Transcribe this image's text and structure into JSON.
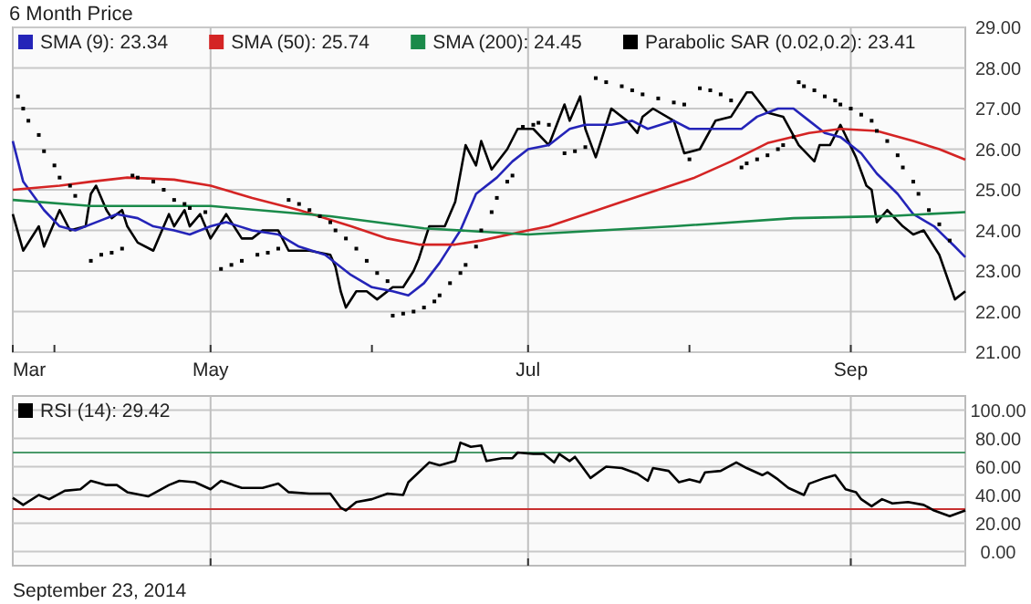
{
  "chart_data": [
    {
      "type": "line",
      "title": "6 Month Price",
      "legend": "top left",
      "grid": true,
      "xlim": [
        "2014-03-24",
        "2014-09-23"
      ],
      "xticks": [
        {
          "value": "2014-03-24",
          "label": "Mar"
        },
        {
          "value": "2014-04-01",
          "label": null
        },
        {
          "value": "2014-05-01",
          "label": "May"
        },
        {
          "value": "2014-06-01",
          "label": null
        },
        {
          "value": "2014-07-01",
          "label": "Jul"
        },
        {
          "value": "2014-08-01",
          "label": null
        },
        {
          "value": "2014-09-01",
          "label": "Sep"
        }
      ],
      "ylim": [
        21,
        29
      ],
      "yticks": [
        {
          "value": 21,
          "label": "21.00"
        },
        {
          "value": 22,
          "label": "22.00"
        },
        {
          "value": 23,
          "label": "23.00"
        },
        {
          "value": 24,
          "label": "24.00"
        },
        {
          "value": 25,
          "label": "25.00"
        },
        {
          "value": 26,
          "label": "26.00"
        },
        {
          "value": 27,
          "label": "27.00"
        },
        {
          "value": 28,
          "label": "28.00"
        },
        {
          "value": 29,
          "label": "29.00"
        }
      ],
      "series": [
        {
          "color": "#000000",
          "x": [
            "2014-03-24",
            "2014-03-26",
            "2014-03-29",
            "2014-03-30",
            "2014-04-02",
            "2014-04-04",
            "2014-04-07",
            "2014-04-08",
            "2014-04-09",
            "2014-04-11",
            "2014-04-12",
            "2014-04-14",
            "2014-04-15",
            "2014-04-17",
            "2014-04-20",
            "2014-04-23",
            "2014-04-24",
            "2014-04-26",
            "2014-04-27",
            "2014-04-29",
            "2014-05-01",
            "2014-05-04",
            "2014-05-07",
            "2014-05-09",
            "2014-05-11",
            "2014-05-14",
            "2014-05-16",
            "2014-05-20",
            "2014-05-24",
            "2014-05-25",
            "2014-05-26",
            "2014-05-27",
            "2014-05-29",
            "2014-05-31",
            "2014-06-02",
            "2014-06-05",
            "2014-06-07",
            "2014-06-09",
            "2014-06-10",
            "2014-06-12",
            "2014-06-15",
            "2014-06-17",
            "2014-06-19",
            "2014-06-21",
            "2014-06-22",
            "2014-06-24",
            "2014-06-27",
            "2014-06-29",
            "2014-07-02",
            "2014-07-05",
            "2014-07-08",
            "2014-07-09",
            "2014-07-11",
            "2014-07-12",
            "2014-07-14",
            "2014-07-17",
            "2014-07-20",
            "2014-07-22",
            "2014-07-23",
            "2014-07-25",
            "2014-07-29",
            "2014-07-31",
            "2014-08-03",
            "2014-08-06",
            "2014-08-09",
            "2014-08-12",
            "2014-08-13",
            "2014-08-16",
            "2014-08-19",
            "2014-08-22",
            "2014-08-25",
            "2014-08-26",
            "2014-08-28",
            "2014-08-30",
            "2014-09-02",
            "2014-09-04",
            "2014-09-05",
            "2014-09-06",
            "2014-09-08",
            "2014-09-11",
            "2014-09-13",
            "2014-09-15",
            "2014-09-18",
            "2014-09-21",
            "2014-09-23"
          ],
          "values": [
            24.4,
            23.5,
            24.1,
            23.6,
            24.5,
            24.0,
            24.1,
            24.9,
            25.1,
            24.5,
            24.3,
            24.5,
            24.1,
            23.7,
            23.5,
            24.4,
            24.1,
            24.5,
            24.1,
            24.4,
            23.8,
            24.4,
            23.8,
            23.8,
            24.0,
            24.0,
            23.5,
            23.5,
            23.4,
            23.1,
            22.5,
            22.1,
            22.5,
            22.5,
            22.3,
            22.6,
            22.6,
            23.0,
            23.3,
            24.1,
            24.1,
            24.7,
            26.1,
            25.6,
            26.2,
            25.5,
            26.0,
            26.5,
            26.5,
            26.1,
            27.1,
            26.7,
            27.3,
            26.5,
            25.8,
            27.0,
            26.7,
            26.4,
            26.8,
            27.0,
            26.7,
            25.9,
            26.0,
            26.7,
            26.8,
            27.4,
            27.4,
            26.9,
            26.8,
            26.1,
            25.7,
            26.1,
            26.1,
            26.6,
            25.8,
            25.1,
            25.0,
            24.2,
            24.5,
            24.1,
            23.9,
            24.0,
            23.4,
            22.3,
            22.5
          ]
        },
        {
          "name": "SMA (9): 23.34",
          "color": "#2424b8",
          "x": [
            "2014-03-24",
            "2014-03-26",
            "2014-03-30",
            "2014-04-02",
            "2014-04-05",
            "2014-04-09",
            "2014-04-13",
            "2014-04-17",
            "2014-04-20",
            "2014-04-24",
            "2014-04-27",
            "2014-05-01",
            "2014-05-04",
            "2014-05-09",
            "2014-05-14",
            "2014-05-18",
            "2014-05-23",
            "2014-05-28",
            "2014-06-01",
            "2014-06-05",
            "2014-06-08",
            "2014-06-11",
            "2014-06-14",
            "2014-06-18",
            "2014-06-21",
            "2014-06-25",
            "2014-06-28",
            "2014-07-01",
            "2014-07-05",
            "2014-07-09",
            "2014-07-12",
            "2014-07-17",
            "2014-07-21",
            "2014-07-24",
            "2014-07-29",
            "2014-08-01",
            "2014-08-05",
            "2014-08-11",
            "2014-08-14",
            "2014-08-18",
            "2014-08-21",
            "2014-08-24",
            "2014-08-27",
            "2014-08-30",
            "2014-09-03",
            "2014-09-06",
            "2014-09-10",
            "2014-09-13",
            "2014-09-17",
            "2014-09-21",
            "2014-09-23"
          ],
          "values": [
            26.2,
            25.2,
            24.5,
            24.1,
            24.0,
            24.2,
            24.4,
            24.3,
            24.1,
            24.0,
            23.9,
            24.1,
            24.2,
            24.0,
            23.9,
            23.6,
            23.4,
            22.9,
            22.6,
            22.5,
            22.4,
            22.7,
            23.2,
            24.0,
            24.9,
            25.3,
            25.7,
            26.0,
            26.1,
            26.5,
            26.6,
            26.6,
            26.7,
            26.5,
            26.7,
            26.5,
            26.5,
            26.5,
            26.8,
            27.0,
            27.0,
            26.7,
            26.4,
            26.3,
            25.9,
            25.4,
            24.9,
            24.4,
            24.1,
            23.6,
            23.34
          ]
        },
        {
          "name": "SMA (50): 25.74",
          "color": "#d42424",
          "x": [
            "2014-03-24",
            "2014-04-02",
            "2014-04-08",
            "2014-04-15",
            "2014-04-24",
            "2014-05-01",
            "2014-05-09",
            "2014-05-18",
            "2014-05-28",
            "2014-06-04",
            "2014-06-10",
            "2014-06-17",
            "2014-06-22",
            "2014-07-01",
            "2014-07-05",
            "2014-07-12",
            "2014-07-19",
            "2014-07-26",
            "2014-08-02",
            "2014-08-09",
            "2014-08-16",
            "2014-08-24",
            "2014-08-30",
            "2014-09-06",
            "2014-09-13",
            "2014-09-18",
            "2014-09-23"
          ],
          "values": [
            25.0,
            25.1,
            25.2,
            25.3,
            25.25,
            25.1,
            24.8,
            24.5,
            24.1,
            23.8,
            23.65,
            23.65,
            23.75,
            24.0,
            24.1,
            24.4,
            24.7,
            25.0,
            25.3,
            25.7,
            26.15,
            26.4,
            26.5,
            26.45,
            26.2,
            26.0,
            25.74
          ]
        },
        {
          "name": "SMA (200): 24.45",
          "color": "#1a8a4a",
          "x": [
            "2014-03-24",
            "2014-04-08",
            "2014-05-01",
            "2014-05-24",
            "2014-06-11",
            "2014-07-01",
            "2014-07-29",
            "2014-08-21",
            "2014-09-08",
            "2014-09-23"
          ],
          "values": [
            24.75,
            24.6,
            24.6,
            24.35,
            24.05,
            23.9,
            24.1,
            24.3,
            24.35,
            24.45
          ]
        },
        {
          "type": "scatter",
          "marker": "square",
          "name": "Parabolic SAR (0.02,0.2): 23.41",
          "color": "#000000",
          "x": [
            "2014-03-25",
            "2014-03-26",
            "2014-03-27",
            "2014-03-29",
            "2014-03-30",
            "2014-04-01",
            "2014-04-02",
            "2014-04-04",
            "2014-04-05",
            "2014-04-08",
            "2014-04-10",
            "2014-04-12",
            "2014-04-14",
            "2014-04-16",
            "2014-04-17",
            "2014-04-20",
            "2014-04-22",
            "2014-04-24",
            "2014-04-26",
            "2014-04-27",
            "2014-04-30",
            "2014-05-03",
            "2014-05-05",
            "2014-05-07",
            "2014-05-10",
            "2014-05-12",
            "2014-05-14",
            "2014-05-16",
            "2014-05-18",
            "2014-05-20",
            "2014-05-22",
            "2014-05-24",
            "2014-05-25",
            "2014-05-27",
            "2014-05-29",
            "2014-05-31",
            "2014-06-02",
            "2014-06-04",
            "2014-06-05",
            "2014-06-07",
            "2014-06-09",
            "2014-06-11",
            "2014-06-13",
            "2014-06-14",
            "2014-06-16",
            "2014-06-18",
            "2014-06-19",
            "2014-06-21",
            "2014-06-22",
            "2014-06-24",
            "2014-06-25",
            "2014-06-27",
            "2014-06-28",
            "2014-06-30",
            "2014-07-02",
            "2014-07-03",
            "2014-07-05",
            "2014-07-08",
            "2014-07-10",
            "2014-07-12",
            "2014-07-14",
            "2014-07-16",
            "2014-07-19",
            "2014-07-21",
            "2014-07-23",
            "2014-07-26",
            "2014-07-29",
            "2014-07-31",
            "2014-08-01",
            "2014-08-03",
            "2014-08-05",
            "2014-08-07",
            "2014-08-09",
            "2014-08-11",
            "2014-08-12",
            "2014-08-14",
            "2014-08-16",
            "2014-08-18",
            "2014-08-19",
            "2014-08-21",
            "2014-08-22",
            "2014-08-23",
            "2014-08-25",
            "2014-08-27",
            "2014-08-29",
            "2014-08-30",
            "2014-09-01",
            "2014-09-03",
            "2014-09-05",
            "2014-09-06",
            "2014-09-08",
            "2014-09-10",
            "2014-09-11",
            "2014-09-13",
            "2014-09-14",
            "2014-09-16",
            "2014-09-18",
            "2014-09-20"
          ],
          "values": [
            27.3,
            27.0,
            26.7,
            26.35,
            25.95,
            25.6,
            25.3,
            25.1,
            24.85,
            23.25,
            23.4,
            23.45,
            23.55,
            25.35,
            25.3,
            25.2,
            25.0,
            24.75,
            24.65,
            24.55,
            24.45,
            23.05,
            23.15,
            23.25,
            23.4,
            23.45,
            23.55,
            24.75,
            24.65,
            24.5,
            24.35,
            24.2,
            24.0,
            23.8,
            23.55,
            23.25,
            22.95,
            22.75,
            21.9,
            21.95,
            22.0,
            22.1,
            22.25,
            22.4,
            22.7,
            22.95,
            23.15,
            23.6,
            24.0,
            24.45,
            24.8,
            25.2,
            25.35,
            26.55,
            26.6,
            26.65,
            26.6,
            25.9,
            25.95,
            26.05,
            27.75,
            27.65,
            27.55,
            27.45,
            27.35,
            27.25,
            27.15,
            27.1,
            25.75,
            27.5,
            27.45,
            27.35,
            27.2,
            25.55,
            25.65,
            25.75,
            25.85,
            26.0,
            26.1,
            26.3,
            27.65,
            27.55,
            27.45,
            27.3,
            27.2,
            27.1,
            27.0,
            26.85,
            26.7,
            26.45,
            26.2,
            25.85,
            25.55,
            25.2,
            24.9,
            24.5,
            24.15,
            23.75
          ]
        }
      ]
    },
    {
      "type": "line",
      "legend": "top left",
      "grid": true,
      "tick_labels": "y",
      "xlim": [
        "2014-03-24",
        "2014-09-23"
      ],
      "xticks": [
        {
          "value": "2014-05-01",
          "label": null
        },
        {
          "value": "2014-07-01",
          "label": null
        },
        {
          "value": "2014-09-01",
          "label": null
        }
      ],
      "ylim": [
        -10,
        110
      ],
      "yticks": [
        {
          "value": 0,
          "label": "0.00"
        },
        {
          "value": 20,
          "label": "20.00"
        },
        {
          "value": 40,
          "label": "40.00"
        },
        {
          "value": 60,
          "label": "60.00"
        },
        {
          "value": 80,
          "label": "80.00"
        },
        {
          "value": 100,
          "label": "100.00"
        }
      ],
      "ref_lines": [
        {
          "axis": "y",
          "value": 70,
          "color": "#4a9a6a"
        },
        {
          "axis": "y",
          "value": 30,
          "color": "#c83030"
        }
      ],
      "annotations": [
        "September 23, 2014"
      ],
      "series": [
        {
          "name": "RSI (14): 29.42",
          "color": "#000000",
          "x": [
            "2014-03-24",
            "2014-03-26",
            "2014-03-29",
            "2014-03-31",
            "2014-04-03",
            "2014-04-06",
            "2014-04-08",
            "2014-04-11",
            "2014-04-13",
            "2014-04-15",
            "2014-04-19",
            "2014-04-23",
            "2014-04-25",
            "2014-04-28",
            "2014-05-01",
            "2014-05-03",
            "2014-05-07",
            "2014-05-11",
            "2014-05-14",
            "2014-05-16",
            "2014-05-20",
            "2014-05-24",
            "2014-05-26",
            "2014-05-27",
            "2014-05-29",
            "2014-06-01",
            "2014-06-04",
            "2014-06-07",
            "2014-06-08",
            "2014-06-12",
            "2014-06-14",
            "2014-06-17",
            "2014-06-18",
            "2014-06-20",
            "2014-06-22",
            "2014-06-23",
            "2014-06-26",
            "2014-06-28",
            "2014-06-29",
            "2014-07-02",
            "2014-07-04",
            "2014-07-06",
            "2014-07-07",
            "2014-07-09",
            "2014-07-10",
            "2014-07-13",
            "2014-07-16",
            "2014-07-19",
            "2014-07-22",
            "2014-07-24",
            "2014-07-25",
            "2014-07-28",
            "2014-07-30",
            "2014-08-01",
            "2014-08-03",
            "2014-08-04",
            "2014-08-07",
            "2014-08-10",
            "2014-08-12",
            "2014-08-15",
            "2014-08-16",
            "2014-08-18",
            "2014-08-20",
            "2014-08-23",
            "2014-08-24",
            "2014-08-27",
            "2014-08-29",
            "2014-08-31",
            "2014-09-02",
            "2014-09-03",
            "2014-09-05",
            "2014-09-07",
            "2014-09-09",
            "2014-09-12",
            "2014-09-15",
            "2014-09-17",
            "2014-09-20",
            "2014-09-23"
          ],
          "values": [
            38,
            33,
            40,
            37,
            43,
            44,
            50,
            47,
            47,
            42,
            39,
            47,
            50,
            49,
            44,
            50,
            45,
            45,
            48,
            42,
            41,
            41,
            31,
            29,
            35,
            37,
            41,
            40,
            49,
            63,
            61,
            64,
            77,
            74,
            75,
            64,
            66,
            66,
            70,
            69,
            69,
            63,
            69,
            64,
            67,
            52,
            60,
            59,
            55,
            50,
            59,
            57,
            49,
            51,
            49,
            56,
            57,
            63,
            59,
            54,
            56,
            51,
            45,
            40,
            48,
            52,
            54,
            44,
            42,
            37,
            32,
            37,
            34,
            35,
            33,
            29,
            25,
            29
          ]
        }
      ]
    }
  ]
}
